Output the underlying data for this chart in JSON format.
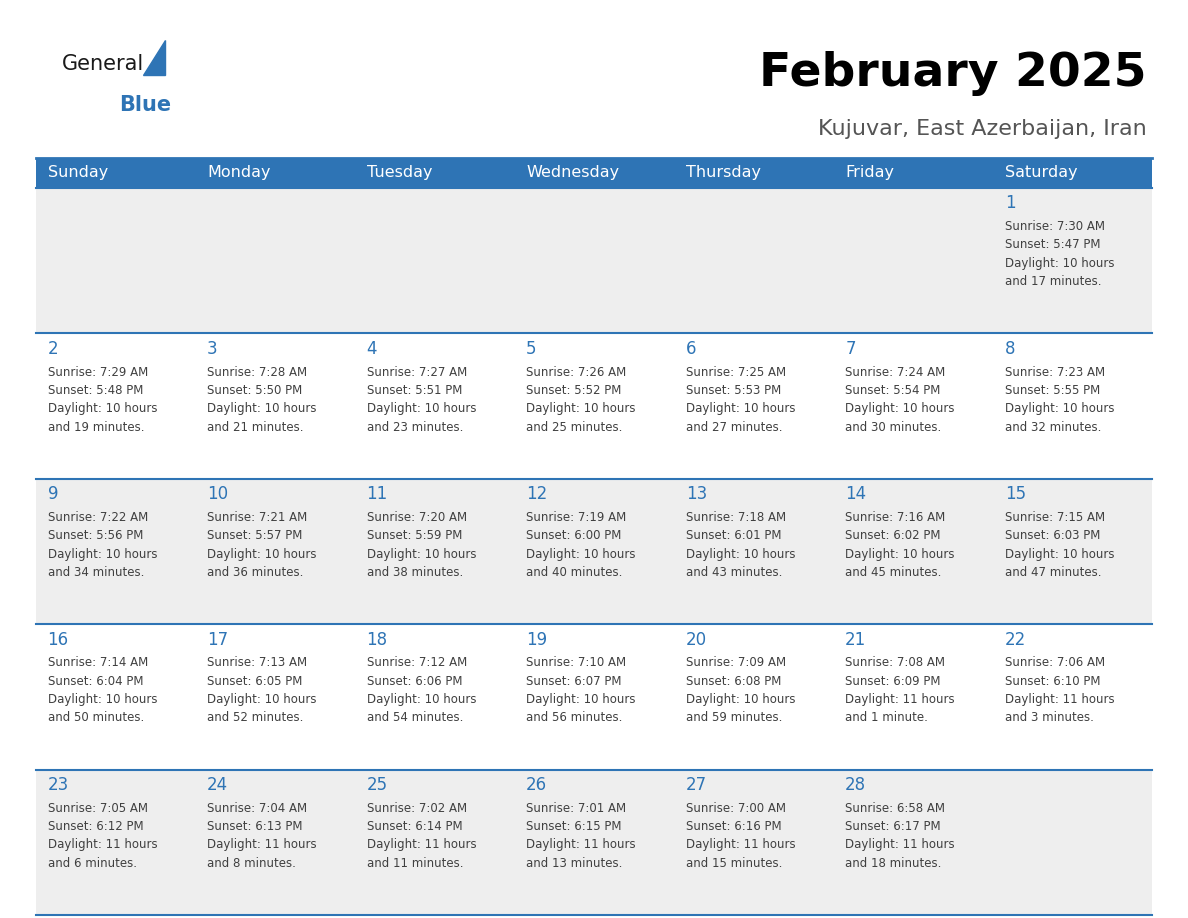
{
  "title": "February 2025",
  "subtitle": "Kujuvar, East Azerbaijan, Iran",
  "days_of_week": [
    "Sunday",
    "Monday",
    "Tuesday",
    "Wednesday",
    "Thursday",
    "Friday",
    "Saturday"
  ],
  "header_bg": "#2E74B5",
  "header_text": "#FFFFFF",
  "row_bg_even": "#EEEEEE",
  "row_bg_odd": "#FFFFFF",
  "separator_color": "#2E74B5",
  "day_number_color": "#2E74B5",
  "info_text_color": "#404040",
  "calendar_data": [
    {
      "day": 1,
      "col": 6,
      "row": 0,
      "sunrise": "7:30 AM",
      "sunset": "5:47 PM",
      "daylight": "10 hours and 17 minutes."
    },
    {
      "day": 2,
      "col": 0,
      "row": 1,
      "sunrise": "7:29 AM",
      "sunset": "5:48 PM",
      "daylight": "10 hours and 19 minutes."
    },
    {
      "day": 3,
      "col": 1,
      "row": 1,
      "sunrise": "7:28 AM",
      "sunset": "5:50 PM",
      "daylight": "10 hours and 21 minutes."
    },
    {
      "day": 4,
      "col": 2,
      "row": 1,
      "sunrise": "7:27 AM",
      "sunset": "5:51 PM",
      "daylight": "10 hours and 23 minutes."
    },
    {
      "day": 5,
      "col": 3,
      "row": 1,
      "sunrise": "7:26 AM",
      "sunset": "5:52 PM",
      "daylight": "10 hours and 25 minutes."
    },
    {
      "day": 6,
      "col": 4,
      "row": 1,
      "sunrise": "7:25 AM",
      "sunset": "5:53 PM",
      "daylight": "10 hours and 27 minutes."
    },
    {
      "day": 7,
      "col": 5,
      "row": 1,
      "sunrise": "7:24 AM",
      "sunset": "5:54 PM",
      "daylight": "10 hours and 30 minutes."
    },
    {
      "day": 8,
      "col": 6,
      "row": 1,
      "sunrise": "7:23 AM",
      "sunset": "5:55 PM",
      "daylight": "10 hours and 32 minutes."
    },
    {
      "day": 9,
      "col": 0,
      "row": 2,
      "sunrise": "7:22 AM",
      "sunset": "5:56 PM",
      "daylight": "10 hours and 34 minutes."
    },
    {
      "day": 10,
      "col": 1,
      "row": 2,
      "sunrise": "7:21 AM",
      "sunset": "5:57 PM",
      "daylight": "10 hours and 36 minutes."
    },
    {
      "day": 11,
      "col": 2,
      "row": 2,
      "sunrise": "7:20 AM",
      "sunset": "5:59 PM",
      "daylight": "10 hours and 38 minutes."
    },
    {
      "day": 12,
      "col": 3,
      "row": 2,
      "sunrise": "7:19 AM",
      "sunset": "6:00 PM",
      "daylight": "10 hours and 40 minutes."
    },
    {
      "day": 13,
      "col": 4,
      "row": 2,
      "sunrise": "7:18 AM",
      "sunset": "6:01 PM",
      "daylight": "10 hours and 43 minutes."
    },
    {
      "day": 14,
      "col": 5,
      "row": 2,
      "sunrise": "7:16 AM",
      "sunset": "6:02 PM",
      "daylight": "10 hours and 45 minutes."
    },
    {
      "day": 15,
      "col": 6,
      "row": 2,
      "sunrise": "7:15 AM",
      "sunset": "6:03 PM",
      "daylight": "10 hours and 47 minutes."
    },
    {
      "day": 16,
      "col": 0,
      "row": 3,
      "sunrise": "7:14 AM",
      "sunset": "6:04 PM",
      "daylight": "10 hours and 50 minutes."
    },
    {
      "day": 17,
      "col": 1,
      "row": 3,
      "sunrise": "7:13 AM",
      "sunset": "6:05 PM",
      "daylight": "10 hours and 52 minutes."
    },
    {
      "day": 18,
      "col": 2,
      "row": 3,
      "sunrise": "7:12 AM",
      "sunset": "6:06 PM",
      "daylight": "10 hours and 54 minutes."
    },
    {
      "day": 19,
      "col": 3,
      "row": 3,
      "sunrise": "7:10 AM",
      "sunset": "6:07 PM",
      "daylight": "10 hours and 56 minutes."
    },
    {
      "day": 20,
      "col": 4,
      "row": 3,
      "sunrise": "7:09 AM",
      "sunset": "6:08 PM",
      "daylight": "10 hours and 59 minutes."
    },
    {
      "day": 21,
      "col": 5,
      "row": 3,
      "sunrise": "7:08 AM",
      "sunset": "6:09 PM",
      "daylight": "11 hours and 1 minute."
    },
    {
      "day": 22,
      "col": 6,
      "row": 3,
      "sunrise": "7:06 AM",
      "sunset": "6:10 PM",
      "daylight": "11 hours and 3 minutes."
    },
    {
      "day": 23,
      "col": 0,
      "row": 4,
      "sunrise": "7:05 AM",
      "sunset": "6:12 PM",
      "daylight": "11 hours and 6 minutes."
    },
    {
      "day": 24,
      "col": 1,
      "row": 4,
      "sunrise": "7:04 AM",
      "sunset": "6:13 PM",
      "daylight": "11 hours and 8 minutes."
    },
    {
      "day": 25,
      "col": 2,
      "row": 4,
      "sunrise": "7:02 AM",
      "sunset": "6:14 PM",
      "daylight": "11 hours and 11 minutes."
    },
    {
      "day": 26,
      "col": 3,
      "row": 4,
      "sunrise": "7:01 AM",
      "sunset": "6:15 PM",
      "daylight": "11 hours and 13 minutes."
    },
    {
      "day": 27,
      "col": 4,
      "row": 4,
      "sunrise": "7:00 AM",
      "sunset": "6:16 PM",
      "daylight": "11 hours and 15 minutes."
    },
    {
      "day": 28,
      "col": 5,
      "row": 4,
      "sunrise": "6:58 AM",
      "sunset": "6:17 PM",
      "daylight": "11 hours and 18 minutes."
    }
  ]
}
